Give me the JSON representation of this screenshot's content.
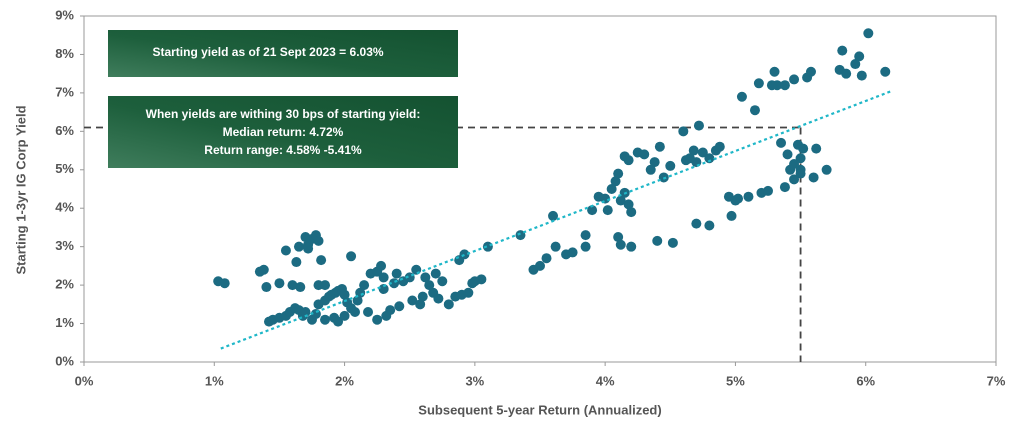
{
  "chart_data": {
    "type": "scatter",
    "x_label": "Subsequent 5-year Return (Annualized)",
    "y_label": "Starting  1-3yr IG Corp Yield",
    "annotations": [
      "Starting yield as of 21 Sept 2023 = 6.03%",
      "When yields are withing 30 bps of starting yield:",
      "Median return:  4.72%",
      "Return range: 4.58% -5.41%"
    ],
    "color": "#1c6b82",
    "trendline": {
      "color": "#1fb7c8",
      "x": [
        1.05,
        6.2
      ],
      "y": [
        0.35,
        7.05
      ]
    },
    "guide": {
      "x": 5.5,
      "y": 6.1
    },
    "xlim": [
      0,
      7
    ],
    "ylim": [
      0,
      9
    ],
    "xticks": [
      {
        "value": 0,
        "label": "0%"
      },
      {
        "value": 1,
        "label": "1%"
      },
      {
        "value": 2,
        "label": "2%"
      },
      {
        "value": 3,
        "label": "3%"
      },
      {
        "value": 4,
        "label": "4%"
      },
      {
        "value": 5,
        "label": "5%"
      },
      {
        "value": 6,
        "label": "6%"
      },
      {
        "value": 7,
        "label": "7%"
      }
    ],
    "yticks": [
      {
        "value": 0,
        "label": "0%"
      },
      {
        "value": 1,
        "label": "1%"
      },
      {
        "value": 2,
        "label": "2%"
      },
      {
        "value": 3,
        "label": "3%"
      },
      {
        "value": 4,
        "label": "4%"
      },
      {
        "value": 5,
        "label": "5%"
      },
      {
        "value": 6,
        "label": "6%"
      },
      {
        "value": 7,
        "label": "7%"
      },
      {
        "value": 8,
        "label": "8%"
      },
      {
        "value": 9,
        "label": "9%"
      }
    ],
    "x": [
      1.03,
      1.08,
      1.35,
      1.38,
      1.4,
      1.5,
      1.55,
      1.6,
      1.63,
      1.66,
      1.7,
      1.72,
      1.75,
      1.78,
      1.8,
      1.82,
      1.85,
      1.8,
      1.72,
      1.65,
      1.42,
      1.45,
      1.5,
      1.55,
      1.58,
      1.62,
      1.65,
      1.68,
      1.7,
      1.75,
      1.78,
      1.8,
      1.85,
      1.88,
      1.9,
      1.93,
      1.95,
      1.98,
      2.0,
      2.02,
      2.05,
      2.08,
      2.1,
      2.12,
      2.15,
      1.92,
      1.95,
      2.0,
      1.85,
      2.18,
      2.2,
      2.25,
      2.28,
      2.3,
      2.32,
      2.35,
      2.38,
      2.4,
      2.42,
      2.45,
      2.5,
      2.52,
      2.55,
      2.58,
      2.6,
      2.62,
      2.65,
      2.68,
      2.7,
      2.72,
      2.75,
      2.8,
      2.85,
      2.88,
      2.9,
      2.92,
      2.95,
      2.98,
      3.0,
      3.05,
      3.1,
      2.05,
      2.25,
      2.3,
      3.35,
      3.45,
      3.5,
      3.55,
      3.6,
      3.62,
      3.7,
      3.75,
      3.85,
      3.85,
      3.9,
      3.95,
      4.0,
      4.02,
      4.05,
      4.08,
      4.1,
      4.12,
      4.15,
      4.18,
      4.2,
      4.1,
      4.12,
      4.2,
      4.15,
      4.18,
      4.25,
      4.3,
      4.35,
      4.38,
      4.42,
      4.45,
      4.5,
      4.4,
      4.52,
      4.6,
      4.62,
      4.65,
      4.68,
      4.7,
      4.72,
      4.75,
      4.8,
      4.85,
      4.88,
      4.7,
      4.8,
      4.95,
      4.97,
      5.0,
      5.02,
      5.05,
      5.1,
      5.15,
      5.18,
      5.2,
      5.25,
      5.28,
      5.3,
      5.32,
      5.35,
      5.38,
      5.4,
      5.42,
      5.45,
      5.48,
      5.5,
      5.52,
      5.5,
      5.45,
      5.55,
      5.58,
      5.6,
      5.38,
      5.45,
      5.5,
      5.62,
      5.7,
      5.8,
      5.82,
      5.85,
      5.92,
      5.95,
      5.97,
      6.02,
      6.15
    ],
    "y": [
      2.1,
      2.05,
      2.35,
      2.4,
      1.95,
      2.05,
      2.9,
      2.0,
      2.6,
      1.95,
      3.25,
      3.05,
      3.2,
      3.3,
      3.15,
      2.65,
      2.0,
      2.0,
      2.95,
      3.0,
      1.05,
      1.1,
      1.15,
      1.2,
      1.3,
      1.4,
      1.35,
      1.2,
      1.3,
      1.1,
      1.25,
      1.5,
      1.6,
      1.7,
      1.75,
      1.8,
      1.85,
      1.9,
      1.75,
      1.55,
      1.4,
      1.3,
      1.6,
      1.8,
      2.0,
      1.15,
      1.05,
      1.2,
      1.1,
      1.3,
      2.3,
      2.35,
      2.5,
      2.2,
      1.2,
      1.35,
      2.05,
      2.3,
      1.45,
      2.1,
      2.2,
      1.6,
      2.4,
      1.5,
      1.7,
      2.2,
      2.0,
      1.8,
      2.3,
      1.65,
      2.1,
      1.5,
      1.7,
      2.65,
      1.75,
      2.8,
      1.8,
      2.05,
      2.1,
      2.15,
      3.0,
      2.75,
      1.1,
      1.9,
      3.3,
      2.4,
      2.5,
      2.7,
      3.8,
      3.0,
      2.8,
      2.85,
      3.0,
      3.3,
      3.95,
      4.3,
      4.25,
      3.95,
      4.5,
      4.7,
      4.9,
      4.2,
      4.4,
      4.1,
      3.9,
      3.25,
      3.05,
      3.0,
      5.35,
      5.25,
      5.45,
      5.4,
      5.0,
      5.2,
      5.6,
      4.8,
      5.1,
      3.15,
      3.1,
      6.0,
      5.25,
      5.3,
      5.5,
      5.2,
      6.15,
      5.45,
      5.3,
      5.5,
      5.6,
      3.6,
      3.55,
      4.3,
      3.8,
      4.2,
      4.25,
      6.9,
      4.3,
      6.55,
      7.25,
      4.4,
      4.45,
      7.2,
      7.55,
      7.2,
      5.7,
      7.2,
      5.4,
      5.0,
      7.35,
      5.65,
      5.3,
      5.55,
      5.0,
      4.75,
      7.4,
      7.55,
      4.8,
      4.55,
      5.15,
      4.9,
      5.55,
      5.0,
      7.6,
      8.1,
      7.5,
      7.75,
      7.95,
      7.45,
      8.55,
      7.55
    ]
  }
}
